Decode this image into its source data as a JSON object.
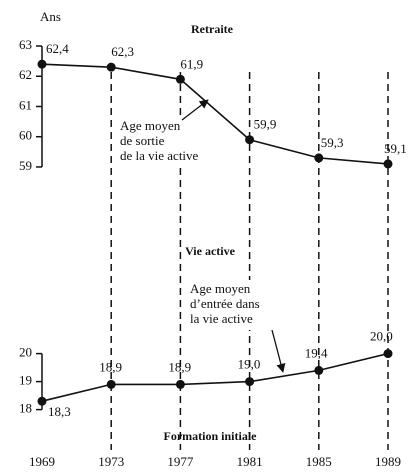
{
  "middle_label": "Vie active",
  "chart_data": [
    {
      "type": "line",
      "title": "Retraite",
      "ylabel": "Ans",
      "annotation": [
        "Age moyen",
        "de sortie",
        "de la vie active"
      ],
      "x": [
        1969,
        1973,
        1977,
        1981,
        1985,
        1989
      ],
      "values": [
        62.4,
        62.3,
        61.9,
        59.9,
        59.3,
        59.1
      ],
      "value_labels": [
        "62,4",
        "62,3",
        "61,9",
        "59,9",
        "59,3",
        "59,1"
      ],
      "xlim": [
        1969,
        1989
      ],
      "ylim": [
        58.8,
        63.1
      ],
      "yticks": [
        59,
        60,
        61,
        62,
        63
      ],
      "color": "#111111"
    },
    {
      "type": "line",
      "title": "Formation initiale",
      "annotation": [
        "Age moyen",
        "d’entrée dans",
        "la vie active"
      ],
      "x": [
        1969,
        1973,
        1977,
        1981,
        1985,
        1989
      ],
      "values": [
        18.3,
        18.9,
        18.9,
        19.0,
        19.4,
        20.0
      ],
      "value_labels": [
        "18,3",
        "18,9",
        "18,9",
        "19,0",
        "19,4",
        "20,0"
      ],
      "xlim": [
        1969,
        1989
      ],
      "ylim": [
        17.7,
        20.2
      ],
      "yticks": [
        18,
        19,
        20
      ],
      "xticks": [
        1969,
        1973,
        1977,
        1981,
        1985,
        1989
      ],
      "grid": "dashed",
      "color": "#111111"
    }
  ]
}
